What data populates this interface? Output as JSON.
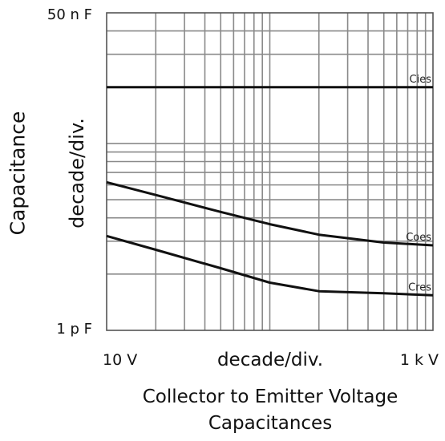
{
  "chart_data": {
    "type": "line",
    "x_scale": "log",
    "y_scale": "log",
    "xlim": [
      10,
      1000
    ],
    "ylim": [
      1,
      50
    ],
    "ylim_unit_labels": {
      "top": "50 n F",
      "bottom": "1 p F"
    },
    "x_tick_labels": {
      "left": "10  V",
      "right": "1 k V"
    },
    "x_center_label": "decade/div.",
    "y_inner_label": "decade/div.",
    "ylabel": "Capacitance",
    "xlabel": "Collector to Emitter Voltage",
    "subtitle": "Capacitances",
    "grid": true,
    "series": [
      {
        "name": "Cies",
        "x": [
          10,
          1000
        ],
        "y": [
          20,
          20
        ]
      },
      {
        "name": "Coes",
        "x": [
          10,
          20,
          50,
          100,
          200,
          500,
          1000
        ],
        "y": [
          6.2,
          5.3,
          4.3,
          3.7,
          3.25,
          2.95,
          2.85
        ]
      },
      {
        "name": "Cres",
        "x": [
          10,
          20,
          50,
          100,
          200,
          500,
          1000
        ],
        "y": [
          3.2,
          2.7,
          2.15,
          1.8,
          1.62,
          1.58,
          1.54
        ]
      }
    ]
  }
}
